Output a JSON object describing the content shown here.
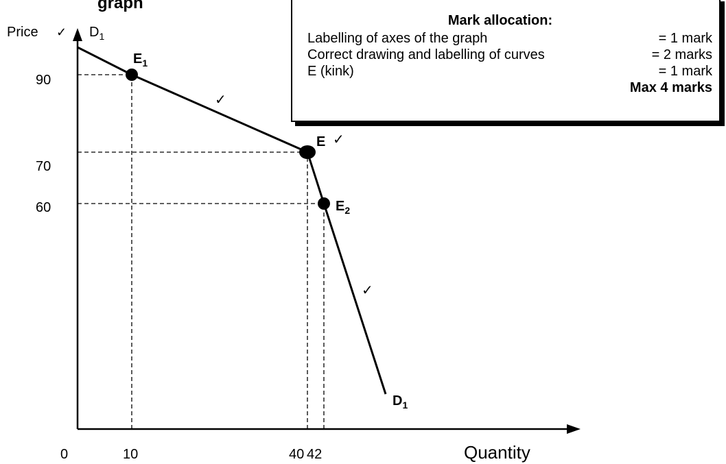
{
  "title_fragments": {
    "left": "graph",
    "right": "p"
  },
  "box": {
    "title": "Mark allocation:",
    "rows": [
      {
        "label": "Labelling of axes of the graph",
        "value": "= 1 mark"
      },
      {
        "label": "Correct drawing and labelling of curves",
        "value": "= 2 marks"
      },
      {
        "label": "E (kink)",
        "value": "= 1 mark"
      }
    ],
    "total": "Max 4 marks"
  },
  "chart_data": {
    "type": "line",
    "xlabel": "Quantity",
    "ylabel": "Price",
    "origin_label": "0",
    "x_ticks": [
      "10",
      "40",
      "42"
    ],
    "y_ticks": [
      "90",
      "70",
      "60"
    ],
    "curve_label": "D1",
    "series": [
      {
        "name": "D1",
        "points": [
          {
            "x": 0,
            "y": 97
          },
          {
            "x": 10,
            "y": 90
          },
          {
            "x": 40,
            "y": 70
          },
          {
            "x": 42,
            "y": 60
          },
          {
            "x": 52,
            "y": 8
          }
        ]
      }
    ],
    "marked_points": [
      {
        "label": "E1",
        "x": 10,
        "y": 90
      },
      {
        "label": "E",
        "x": 40,
        "y": 70
      },
      {
        "label": "E2",
        "x": 42,
        "y": 60
      }
    ],
    "annotations": [
      "✓"
    ],
    "grid": false
  }
}
